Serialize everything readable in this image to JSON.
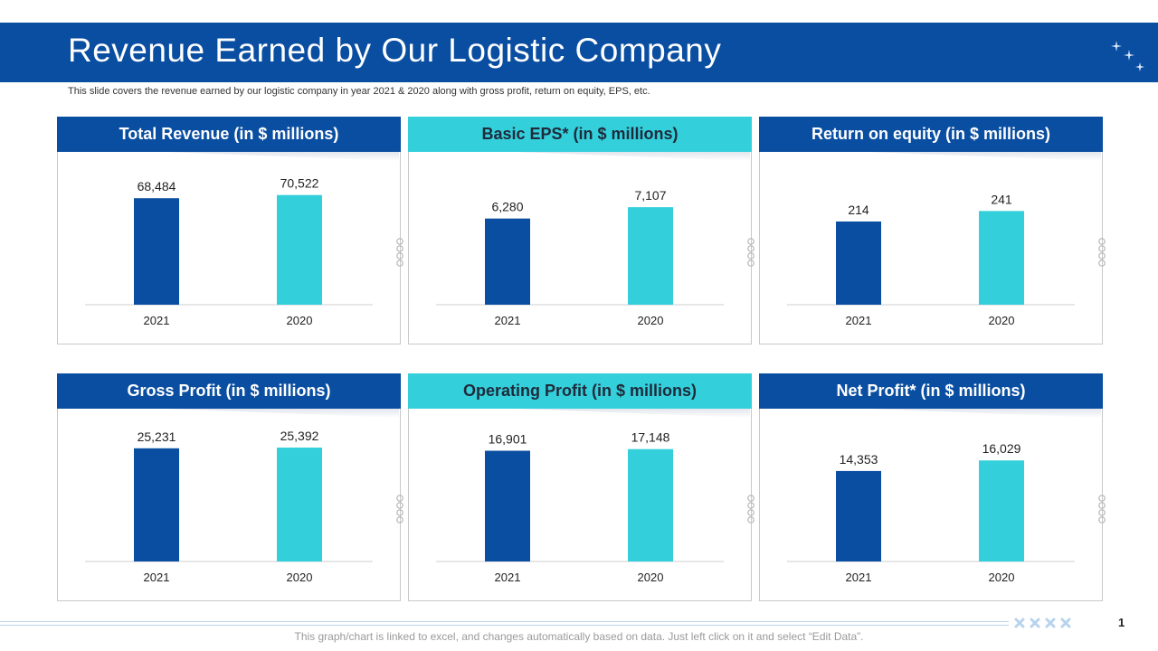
{
  "title": "Revenue Earned by Our Logistic Company",
  "subtitle": "This slide covers the revenue earned by our logistic company in year 2021 & 2020 along with gross profit, return on equity, EPS, etc.",
  "footer_note": "This graph/chart is linked to excel, and changes automatically based on data. Just left click on it and select “Edit Data”.",
  "page_number": "1",
  "colors": {
    "dark": "#0a4ea1",
    "light": "#33d0dc"
  },
  "chart_data": [
    {
      "type": "bar",
      "title": "Total Revenue (in $ millions)",
      "categories": [
        "2021",
        "2020"
      ],
      "values": [
        68484,
        70522
      ],
      "labels": [
        "68,484",
        "70,522"
      ],
      "ylim": [
        0,
        75000
      ]
    },
    {
      "type": "bar",
      "title": "Basic EPS* (in $ millions)",
      "categories": [
        "2021",
        "2020"
      ],
      "values": [
        6280,
        7107
      ],
      "labels": [
        "6,280",
        "7,107"
      ],
      "ylim": [
        0,
        8500
      ]
    },
    {
      "type": "bar",
      "title": "Return on equity (in $ millions)",
      "categories": [
        "2021",
        "2020"
      ],
      "values": [
        214,
        241
      ],
      "labels": [
        "214",
        "241"
      ],
      "ylim": [
        0,
        300
      ]
    },
    {
      "type": "bar",
      "title": "Gross Profit (in $ millions)",
      "categories": [
        "2021",
        "2020"
      ],
      "values": [
        25231,
        25392
      ],
      "labels": [
        "25,231",
        "25,392"
      ],
      "ylim": [
        0,
        26000
      ]
    },
    {
      "type": "bar",
      "title": "Operating Profit (in $ millions)",
      "categories": [
        "2021",
        "2020"
      ],
      "values": [
        16901,
        17148
      ],
      "labels": [
        "16,901",
        "17,148"
      ],
      "ylim": [
        0,
        17800
      ]
    },
    {
      "type": "bar",
      "title": "Net Profit* (in $ millions)",
      "categories": [
        "2021",
        "2020"
      ],
      "values": [
        14353,
        16029
      ],
      "labels": [
        "14,353",
        "16,029"
      ],
      "ylim": [
        0,
        18500
      ]
    }
  ]
}
